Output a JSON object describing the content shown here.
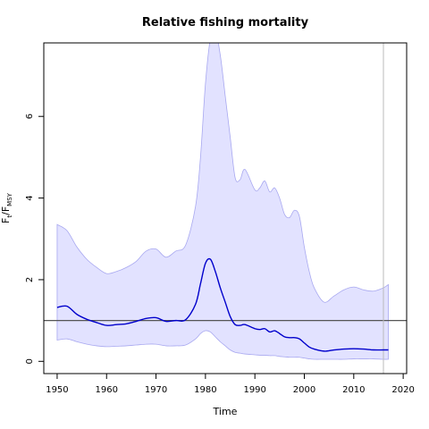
{
  "chart_data": {
    "type": "area",
    "title": "Relative fishing mortality",
    "xlabel": "Time",
    "ylabel_main": "F",
    "ylabel_sub1": "t",
    "ylabel_mid": "/F",
    "ylabel_sub2": "MSY",
    "xlim": [
      1947.3,
      2020.7
    ],
    "ylim": [
      -0.3,
      7.8
    ],
    "x_ticks": [
      1950,
      1960,
      1970,
      1980,
      1990,
      2000,
      2010,
      2020
    ],
    "y_ticks": [
      0,
      2,
      4,
      6
    ],
    "reference_line": 1,
    "vertical_line": 2016,
    "colors": {
      "band_fill": "#e2e2ff",
      "band_edge": "#a8a8f0",
      "median": "#0000cc",
      "reference": "#555555",
      "vertical": "#bbbbbb"
    },
    "x": [
      1950,
      1952,
      1954,
      1956,
      1958,
      1960,
      1962,
      1964,
      1966,
      1968,
      1970,
      1972,
      1974,
      1976,
      1978,
      1979,
      1980,
      1981,
      1982,
      1983,
      1984,
      1985,
      1986,
      1987,
      1988,
      1990,
      1991,
      1992,
      1993,
      1994,
      1995,
      1996,
      1997,
      1998,
      1999,
      2000,
      2001,
      2002,
      2004,
      2006,
      2008,
      2010,
      2012,
      2014,
      2016,
      2017
    ],
    "series": [
      {
        "role": "upper",
        "values": [
          3.35,
          3.2,
          2.8,
          2.5,
          2.3,
          2.15,
          2.2,
          2.3,
          2.45,
          2.7,
          2.75,
          2.55,
          2.7,
          2.85,
          3.8,
          5.0,
          6.8,
          7.9,
          8.1,
          7.5,
          6.5,
          5.5,
          4.5,
          4.45,
          4.7,
          4.2,
          4.25,
          4.42,
          4.15,
          4.25,
          4.0,
          3.6,
          3.52,
          3.7,
          3.55,
          2.8,
          2.2,
          1.8,
          1.45,
          1.6,
          1.75,
          1.82,
          1.75,
          1.72,
          1.8,
          1.88
        ]
      },
      {
        "role": "median",
        "values": [
          1.32,
          1.35,
          1.15,
          1.03,
          0.95,
          0.88,
          0.9,
          0.92,
          0.98,
          1.05,
          1.07,
          0.98,
          1.0,
          1.02,
          1.4,
          1.9,
          2.4,
          2.5,
          2.2,
          1.8,
          1.45,
          1.1,
          0.9,
          0.88,
          0.9,
          0.8,
          0.78,
          0.8,
          0.72,
          0.75,
          0.68,
          0.6,
          0.58,
          0.58,
          0.55,
          0.45,
          0.35,
          0.3,
          0.25,
          0.28,
          0.3,
          0.31,
          0.3,
          0.28,
          0.28,
          0.28
        ]
      },
      {
        "role": "lower",
        "values": [
          0.52,
          0.55,
          0.48,
          0.42,
          0.38,
          0.36,
          0.37,
          0.38,
          0.4,
          0.42,
          0.42,
          0.38,
          0.38,
          0.4,
          0.55,
          0.68,
          0.75,
          0.72,
          0.6,
          0.48,
          0.38,
          0.28,
          0.22,
          0.2,
          0.18,
          0.16,
          0.15,
          0.15,
          0.14,
          0.14,
          0.12,
          0.11,
          0.1,
          0.1,
          0.1,
          0.08,
          0.06,
          0.05,
          0.05,
          0.05,
          0.05,
          0.06,
          0.06,
          0.06,
          0.05,
          0.05
        ]
      }
    ]
  }
}
